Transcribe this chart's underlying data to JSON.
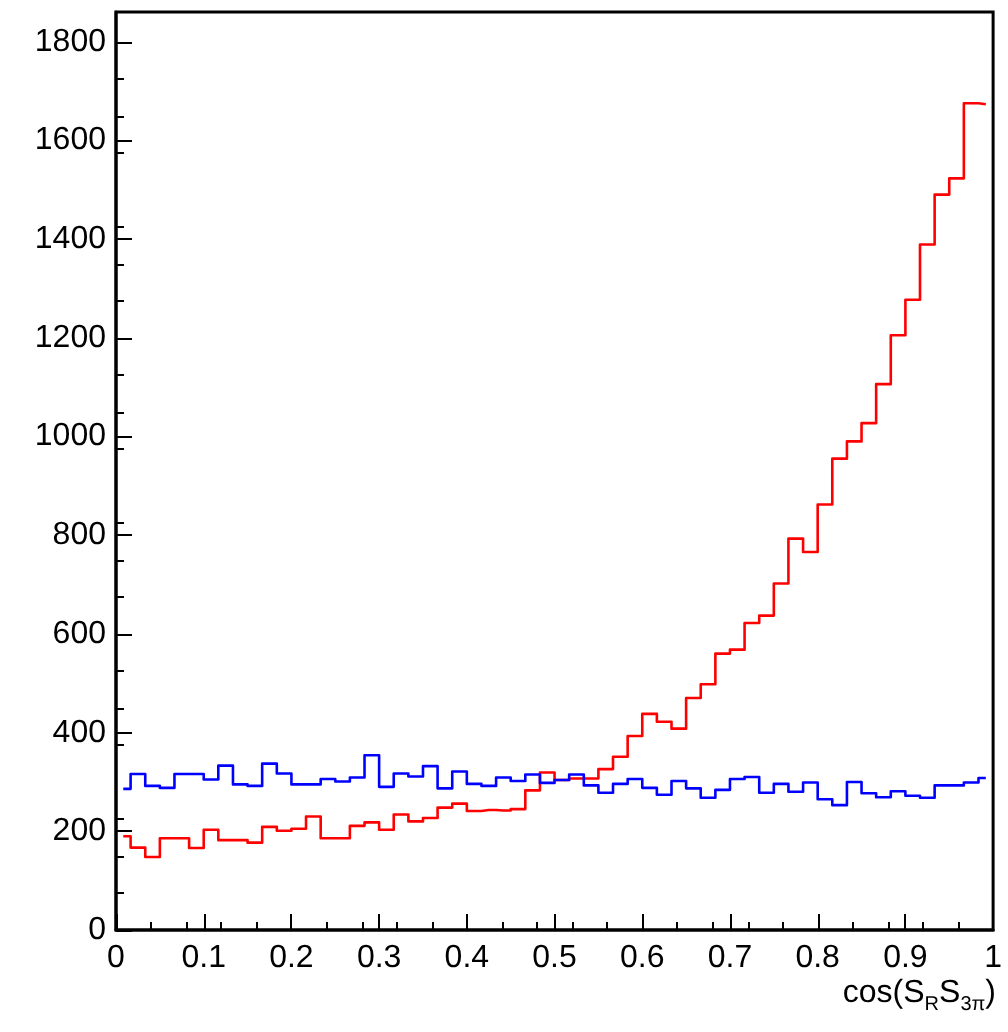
{
  "chart_data": {
    "type": "step",
    "xlabel": "cos(S$_{R}$S$_{3π}$)",
    "x": [
      0.0083,
      0.025,
      0.0417,
      0.0583,
      0.075,
      0.0917,
      0.1083,
      0.125,
      0.1417,
      0.1583,
      0.175,
      0.1917,
      0.2083,
      0.225,
      0.2417,
      0.2583,
      0.275,
      0.2917,
      0.3083,
      0.325,
      0.3417,
      0.3583,
      0.375,
      0.3917,
      0.4083,
      0.425,
      0.4417,
      0.4583,
      0.475,
      0.4917,
      0.5083,
      0.525,
      0.5417,
      0.5583,
      0.575,
      0.5917,
      0.6083,
      0.625,
      0.6417,
      0.6583,
      0.675,
      0.6917,
      0.7083,
      0.725,
      0.7417,
      0.7583,
      0.775,
      0.7917,
      0.8083,
      0.825,
      0.8417,
      0.8583,
      0.875,
      0.8917,
      0.9083,
      0.925,
      0.9417,
      0.9583,
      0.975,
      0.9917
    ],
    "series": [
      {
        "color": "#ff0000",
        "values": [
          190,
          167,
          148,
          186,
          186,
          166,
          203,
          182,
          182,
          177,
          209,
          201,
          205,
          230,
          186,
          186,
          211,
          218,
          203,
          234,
          220,
          227,
          248,
          256,
          241,
          243,
          242,
          245,
          283,
          319,
          304,
          307,
          307,
          326,
          351,
          393,
          438,
          422,
          408,
          470,
          498,
          560,
          568,
          622,
          637,
          702,
          793,
          766,
          862,
          955,
          990,
          1027,
          1106,
          1205,
          1277,
          1389,
          1490,
          1523,
          1675,
          1673
        ]
      },
      {
        "color": "#0000ff",
        "values": [
          286,
          316,
          292,
          288,
          316,
          316,
          305,
          333,
          295,
          292,
          337,
          317,
          295,
          295,
          306,
          301,
          309,
          354,
          290,
          317,
          311,
          332,
          287,
          321,
          296,
          292,
          309,
          302,
          315,
          298,
          304,
          315,
          293,
          278,
          296,
          306,
          288,
          274,
          302,
          287,
          268,
          284,
          306,
          310,
          278,
          296,
          280,
          299,
          265,
          253,
          300,
          277,
          269,
          281,
          272,
          268,
          293,
          293,
          299,
          308
        ]
      }
    ],
    "xlim": [
      0,
      1
    ],
    "xticks": [
      0,
      0.1,
      0.2,
      0.3,
      0.4,
      0.5,
      0.6,
      0.7,
      0.8,
      0.9,
      1
    ],
    "ylim": [
      0,
      1860
    ],
    "yticks": [
      0,
      200,
      400,
      600,
      800,
      1000,
      1200,
      1400,
      1600,
      1800
    ],
    "grid": false
  }
}
